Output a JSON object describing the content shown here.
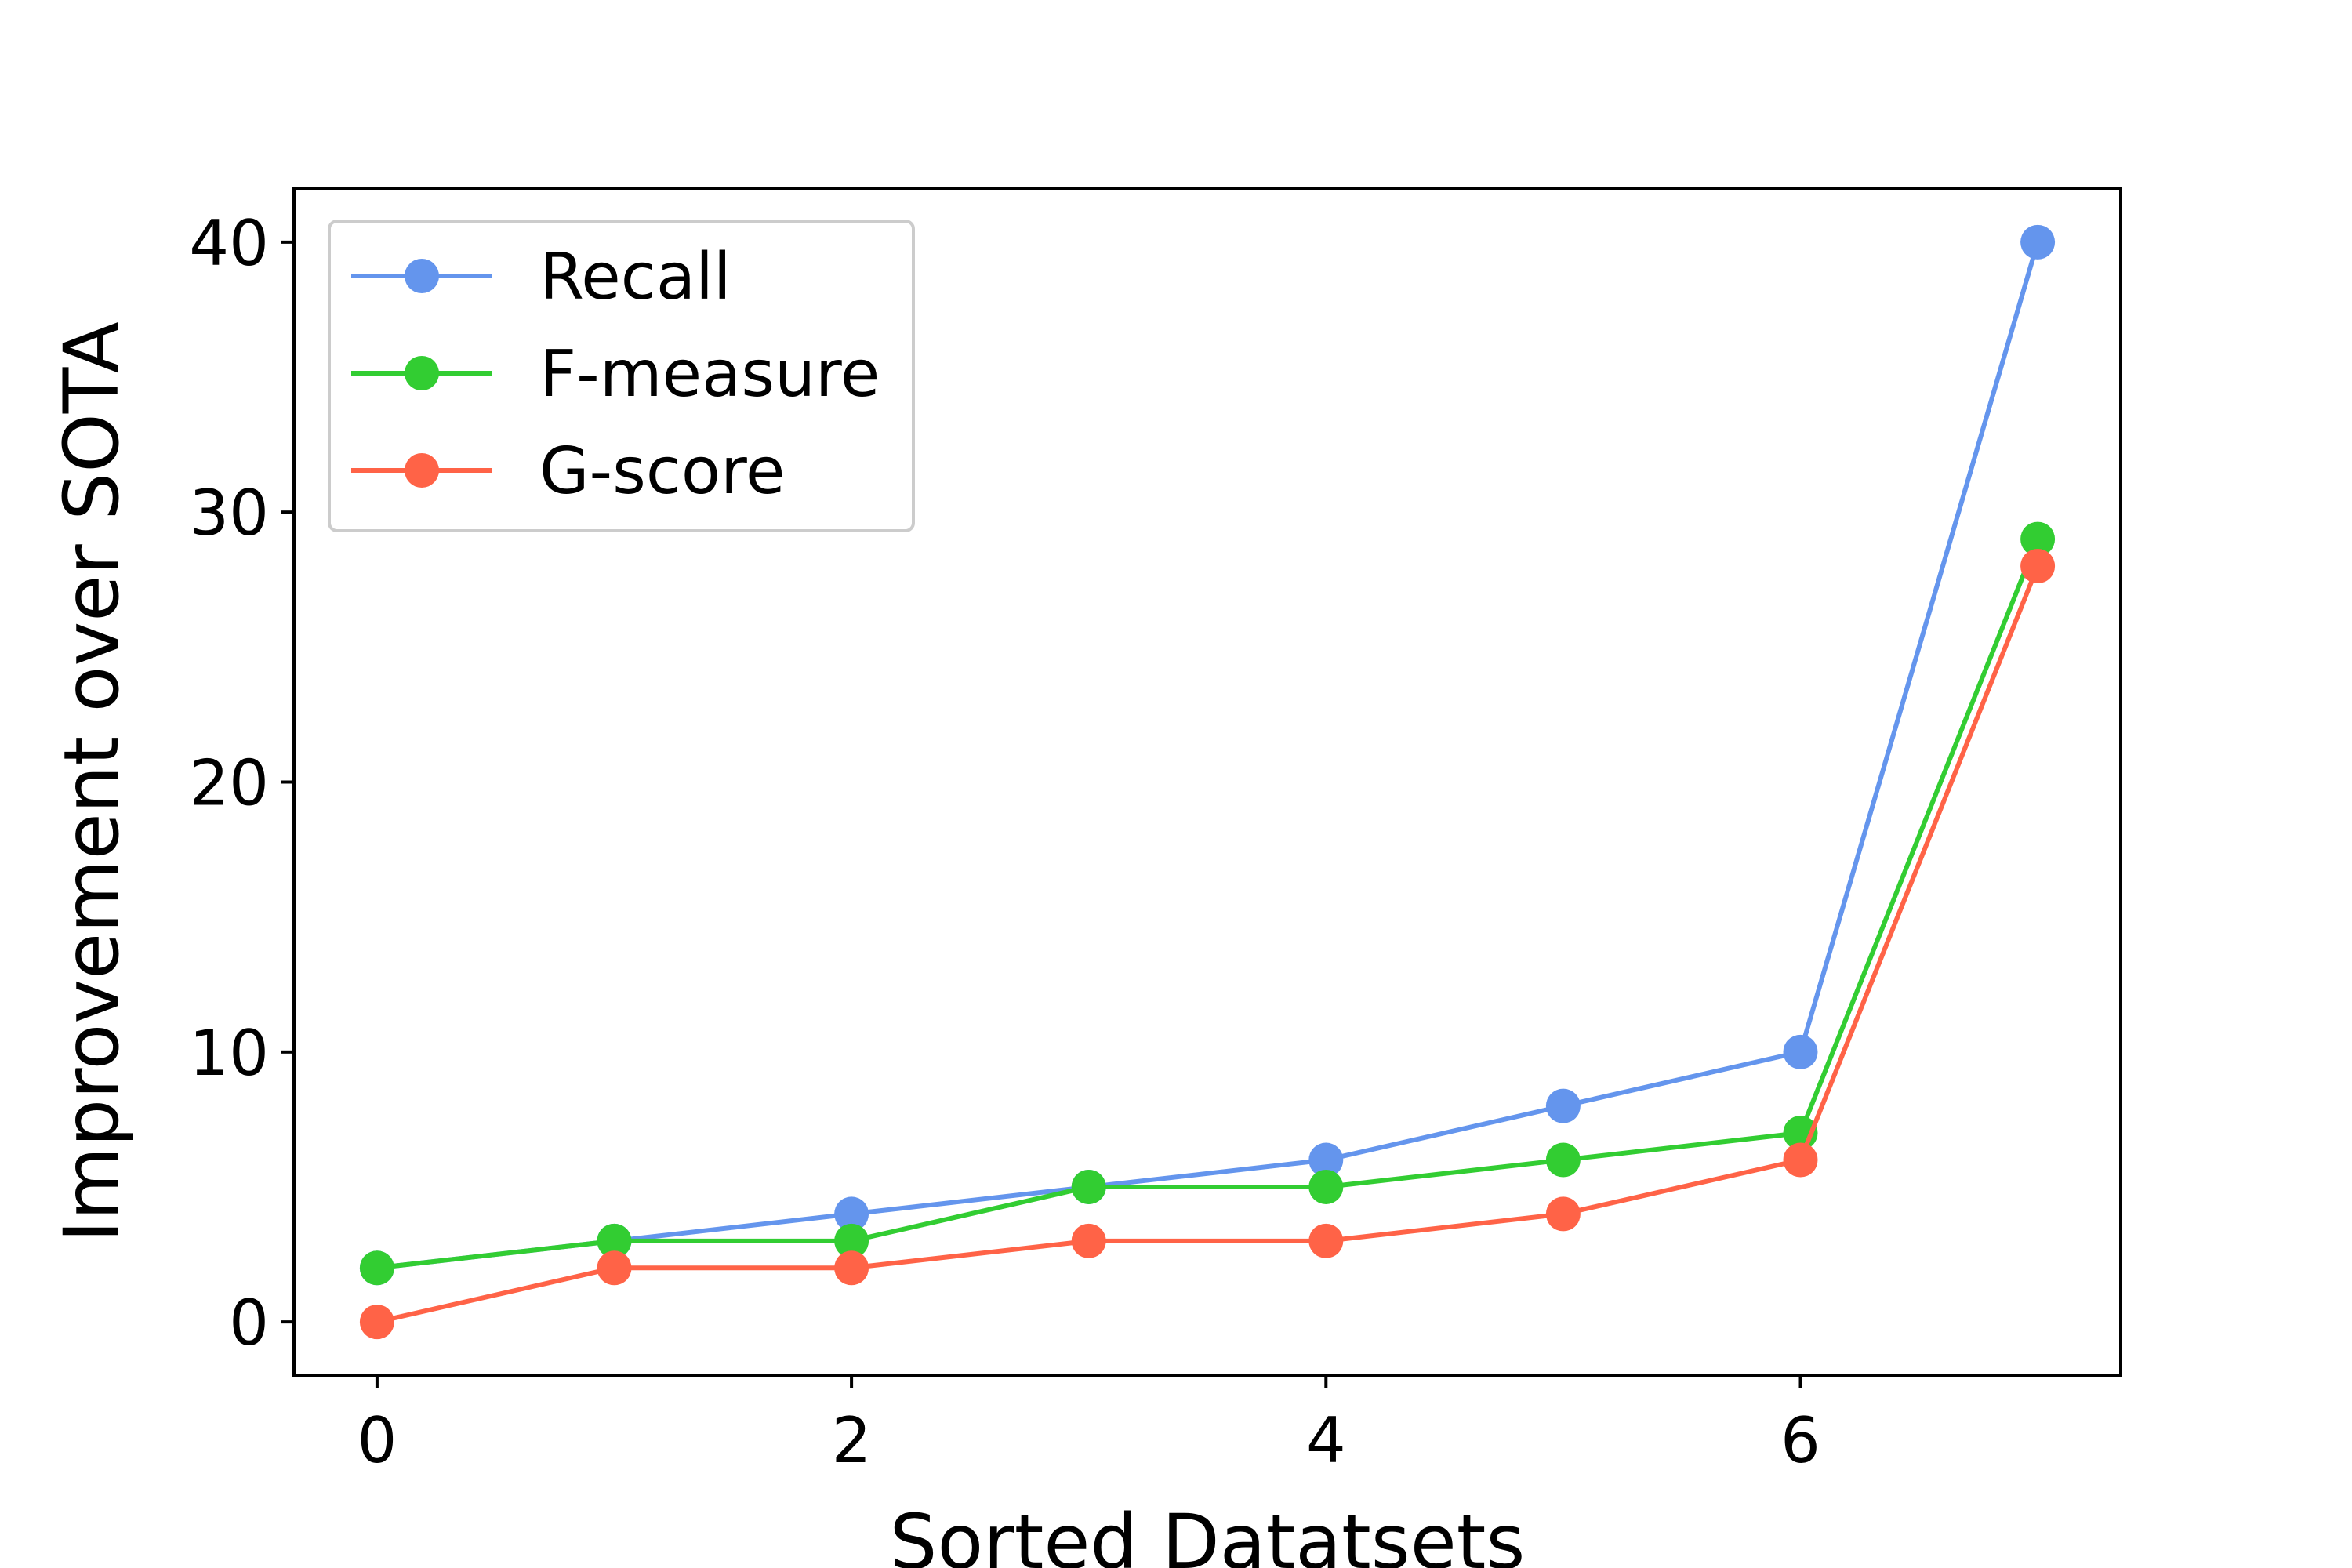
{
  "chart_data": {
    "type": "line",
    "title": "",
    "xlabel": "Sorted Datatsets",
    "ylabel": "Improvement over SOTA",
    "x": [
      0,
      1,
      2,
      3,
      4,
      5,
      6,
      7
    ],
    "xlim": [
      -0.35,
      7.35
    ],
    "ylim": [
      -2,
      42
    ],
    "xticks": [
      0,
      2,
      4,
      6
    ],
    "yticks": [
      0,
      10,
      20,
      30,
      40
    ],
    "grid": false,
    "legend_position": "upper-left",
    "series": [
      {
        "name": "Recall",
        "color": "#6495ed",
        "values": [
          2,
          3,
          4,
          5,
          6,
          8,
          10,
          40
        ]
      },
      {
        "name": "F-measure",
        "color": "#32cd32",
        "values": [
          2,
          3,
          3,
          5,
          5,
          6,
          7,
          29
        ]
      },
      {
        "name": "G-score",
        "color": "#ff6347",
        "values": [
          0,
          2,
          2,
          3,
          3,
          4,
          6,
          28
        ]
      }
    ]
  }
}
